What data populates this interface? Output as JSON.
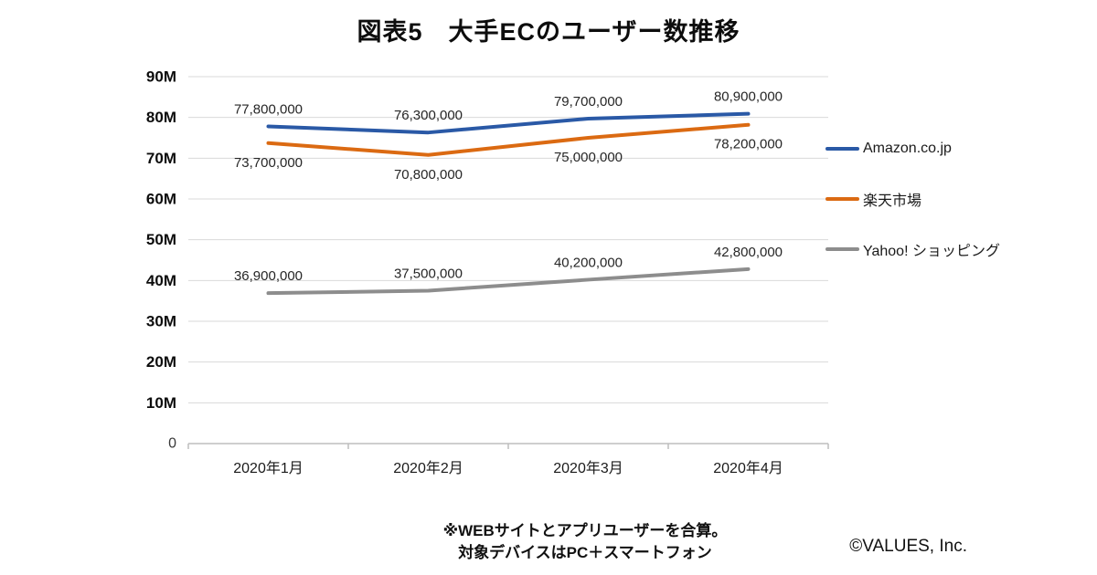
{
  "title": "図表5　大手ECのユーザー数推移",
  "chart_data": {
    "type": "line",
    "categories": [
      "2020年1月",
      "2020年2月",
      "2020年3月",
      "2020年4月"
    ],
    "series": [
      {
        "name": "Amazon.co.jp",
        "color": "#2A59A6",
        "values": [
          77800000,
          76300000,
          79700000,
          80900000
        ],
        "label_position": "above"
      },
      {
        "name": "楽天市場",
        "color": "#DB6A12",
        "values": [
          73700000,
          70800000,
          75000000,
          78200000
        ],
        "label_position": "below"
      },
      {
        "name": "Yahoo! ショッピング",
        "color": "#8D8D8D",
        "values": [
          36900000,
          37500000,
          40200000,
          42800000
        ],
        "label_position": "above"
      }
    ],
    "ylim": [
      0,
      90000000
    ],
    "ytick_step": 10000000,
    "ytick_suffix": "M",
    "origin_label": "0",
    "grid": true,
    "legend_position": "right"
  },
  "footnote": {
    "line1": "※WEBサイトとアプリユーザーを合算。",
    "line2": "対象デバイスはPC＋スマートフォン"
  },
  "copyright": "©VALUES, Inc.",
  "colors": {
    "gridline": "#D9D9D9",
    "axis": "#BDBDBD",
    "title_text": "#0D0D0D"
  }
}
